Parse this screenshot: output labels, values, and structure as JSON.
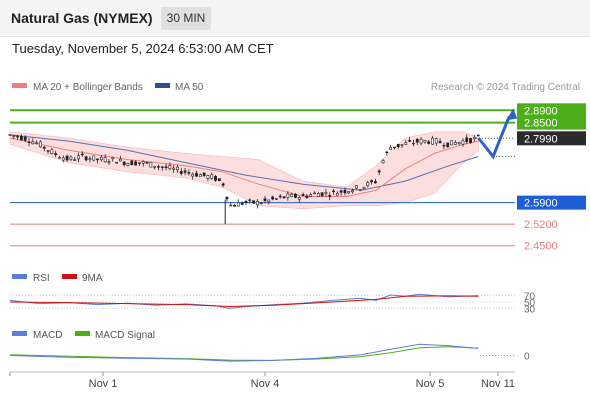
{
  "header": {
    "title": "Natural Gas (NYMEX)",
    "interval": "30 MIN",
    "datetime": "Tuesday, November 5, 2024 6:53:00 AM CET"
  },
  "legend": {
    "ma20": "MA 20 + Bollinger Bands",
    "ma50": "MA 50",
    "credit": "Research © 2024 Trading Central",
    "rsi": "RSI",
    "rsi_ma": "9MA",
    "macd": "MACD",
    "macd_signal": "MACD Signal"
  },
  "colors": {
    "green": "#4caf1a",
    "blue": "#1f5fd6",
    "red": "#e87b7b",
    "dark": "#2b2b2b",
    "ma20": "#f08080",
    "ma50": "#5a6fb0",
    "band": "#fcdede"
  },
  "chart_data": {
    "type": "candlestick",
    "x_ticks": [
      "Nov 1",
      "Nov 4",
      "Nov 5",
      "Nov 11"
    ],
    "price_ylim": [
      2.41,
      2.93
    ],
    "levels": [
      {
        "value": 2.89,
        "label": "2.8900",
        "color": "#4caf1a",
        "style": "solid"
      },
      {
        "value": 2.85,
        "label": "2.8500",
        "color": "#4caf1a",
        "style": "solid"
      },
      {
        "value": 2.799,
        "label": "2.7990",
        "color": "#2b2b2b",
        "style": "dotted"
      },
      {
        "value": 2.59,
        "label": "2.5900",
        "color": "#1f5fd6",
        "style": "solid"
      },
      {
        "value": 2.52,
        "label": "2.5200",
        "color": "#e87b7b",
        "style": "solid"
      },
      {
        "value": 2.45,
        "label": "2.4500",
        "color": "#e87b7b",
        "style": "solid"
      }
    ],
    "price_path": [
      [
        0,
        2.81
      ],
      [
        10,
        2.8
      ],
      [
        20,
        2.78
      ],
      [
        30,
        2.75
      ],
      [
        40,
        2.73
      ],
      [
        50,
        2.74
      ],
      [
        60,
        2.73
      ],
      [
        70,
        2.73
      ],
      [
        80,
        2.72
      ],
      [
        90,
        2.72
      ],
      [
        100,
        2.71
      ],
      [
        110,
        2.7
      ],
      [
        120,
        2.69
      ],
      [
        130,
        2.68
      ],
      [
        140,
        2.67
      ],
      [
        146,
        2.65
      ],
      [
        150,
        2.58
      ],
      [
        160,
        2.59
      ],
      [
        170,
        2.59
      ],
      [
        180,
        2.6
      ],
      [
        190,
        2.61
      ],
      [
        200,
        2.61
      ],
      [
        210,
        2.62
      ],
      [
        220,
        2.62
      ],
      [
        230,
        2.63
      ],
      [
        240,
        2.64
      ],
      [
        250,
        2.66
      ],
      [
        255,
        2.73
      ],
      [
        260,
        2.77
      ],
      [
        270,
        2.78
      ],
      [
        280,
        2.79
      ],
      [
        290,
        2.79
      ],
      [
        300,
        2.78
      ],
      [
        310,
        2.79
      ],
      [
        320,
        2.8
      ]
    ],
    "ma20_path": [
      [
        0,
        2.8
      ],
      [
        40,
        2.76
      ],
      [
        80,
        2.73
      ],
      [
        120,
        2.71
      ],
      [
        145,
        2.69
      ],
      [
        170,
        2.65
      ],
      [
        200,
        2.61
      ],
      [
        230,
        2.61
      ],
      [
        250,
        2.63
      ],
      [
        270,
        2.7
      ],
      [
        290,
        2.75
      ],
      [
        310,
        2.78
      ],
      [
        320,
        2.79
      ]
    ],
    "ma50_path": [
      [
        0,
        2.81
      ],
      [
        40,
        2.79
      ],
      [
        80,
        2.76
      ],
      [
        120,
        2.72
      ],
      [
        160,
        2.68
      ],
      [
        200,
        2.65
      ],
      [
        240,
        2.63
      ],
      [
        270,
        2.66
      ],
      [
        300,
        2.71
      ],
      [
        320,
        2.74
      ]
    ],
    "band_upper": [
      [
        0,
        2.82
      ],
      [
        40,
        2.8
      ],
      [
        80,
        2.77
      ],
      [
        120,
        2.75
      ],
      [
        145,
        2.74
      ],
      [
        170,
        2.73
      ],
      [
        200,
        2.66
      ],
      [
        230,
        2.64
      ],
      [
        250,
        2.71
      ],
      [
        270,
        2.8
      ],
      [
        290,
        2.82
      ],
      [
        310,
        2.82
      ],
      [
        320,
        2.8
      ]
    ],
    "band_lower": [
      [
        0,
        2.78
      ],
      [
        40,
        2.72
      ],
      [
        80,
        2.69
      ],
      [
        120,
        2.67
      ],
      [
        145,
        2.64
      ],
      [
        170,
        2.58
      ],
      [
        200,
        2.57
      ],
      [
        230,
        2.58
      ],
      [
        250,
        2.58
      ],
      [
        270,
        2.59
      ],
      [
        290,
        2.62
      ],
      [
        310,
        2.72
      ],
      [
        320,
        2.76
      ]
    ],
    "forecast": [
      [
        320,
        2.8
      ],
      [
        330,
        2.74
      ],
      [
        341,
        2.87
      ]
    ],
    "rsi_levels": [
      70,
      50,
      30
    ],
    "rsi_ylim": [
      0,
      100
    ],
    "rsi_path": [
      [
        0,
        55
      ],
      [
        20,
        45
      ],
      [
        40,
        48
      ],
      [
        60,
        42
      ],
      [
        80,
        46
      ],
      [
        100,
        40
      ],
      [
        120,
        44
      ],
      [
        140,
        38
      ],
      [
        150,
        30
      ],
      [
        160,
        35
      ],
      [
        180,
        42
      ],
      [
        200,
        46
      ],
      [
        220,
        55
      ],
      [
        240,
        62
      ],
      [
        250,
        55
      ],
      [
        260,
        72
      ],
      [
        270,
        68
      ],
      [
        280,
        74
      ],
      [
        300,
        66
      ],
      [
        320,
        70
      ]
    ],
    "rsi_ma_path": [
      [
        0,
        50
      ],
      [
        40,
        48
      ],
      [
        80,
        45
      ],
      [
        120,
        42
      ],
      [
        150,
        36
      ],
      [
        180,
        40
      ],
      [
        220,
        50
      ],
      [
        250,
        58
      ],
      [
        270,
        68
      ],
      [
        300,
        69
      ],
      [
        320,
        68
      ]
    ],
    "macd_zero_label": "0",
    "macd_path": [
      [
        0,
        0
      ],
      [
        40,
        -0.5
      ],
      [
        80,
        -0.8
      ],
      [
        120,
        -1.0
      ],
      [
        150,
        -1.6
      ],
      [
        180,
        -1.4
      ],
      [
        210,
        -0.8
      ],
      [
        240,
        0.2
      ],
      [
        260,
        1.8
      ],
      [
        280,
        3.2
      ],
      [
        300,
        2.8
      ],
      [
        320,
        2.0
      ]
    ],
    "macd_signal_path": [
      [
        0,
        0.2
      ],
      [
        40,
        -0.2
      ],
      [
        80,
        -0.6
      ],
      [
        120,
        -0.9
      ],
      [
        150,
        -1.3
      ],
      [
        180,
        -1.4
      ],
      [
        210,
        -1.0
      ],
      [
        240,
        -0.3
      ],
      [
        260,
        0.8
      ],
      [
        280,
        2.2
      ],
      [
        300,
        2.5
      ],
      [
        320,
        2.1
      ]
    ],
    "macd_ylim": [
      -3,
      5
    ]
  }
}
